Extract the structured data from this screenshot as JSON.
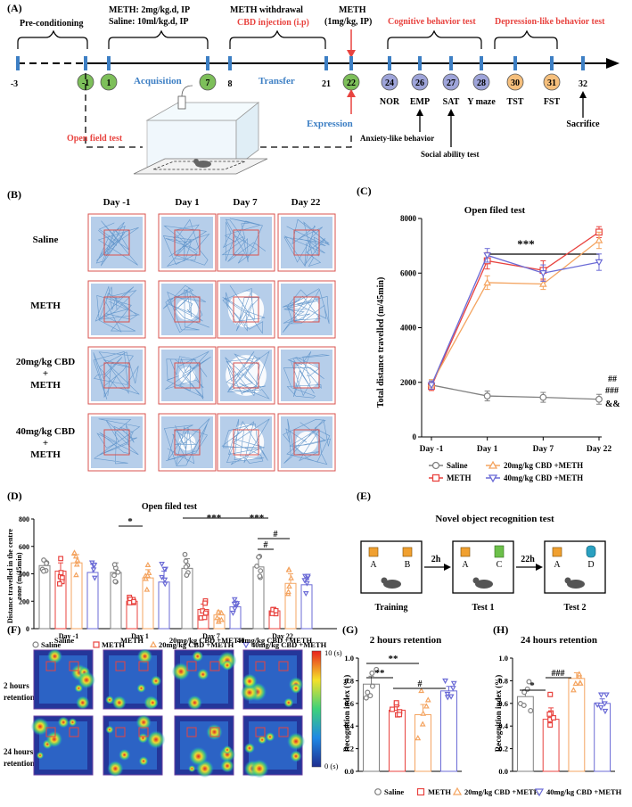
{
  "colors": {
    "red": "#e8433f",
    "blue": "#3d7fc4",
    "green": "#7dbf5a",
    "purple": "#9ea4d9",
    "orange": "#f5bf7c",
    "track": "#a9c6e6",
    "box": "#d9534f",
    "saline": "#808080",
    "meth": "#e8433f",
    "cbd20": "#f4a460",
    "cbd40": "#6b6bd6"
  },
  "panelA": {
    "label": "(A)",
    "preconditioning": "Pre-conditioning",
    "meth_dose": "METH: 2mg/kg.d, IP",
    "saline_dose": "Saline: 10ml/kg.d, IP",
    "acquisition": "Acquisition",
    "withdrawal": "METH withdrawal",
    "cbd_inj": "CBD injection (i.p)",
    "transfer": "Transfer",
    "meth_challenge_1": "METH",
    "meth_challenge_2": "(1mg/kg, IP)",
    "expression": "Expression",
    "cognitive": "Cognitive behavior test",
    "depression": "Depression-like behavior test",
    "open_field": "Open field test",
    "anxiety": "Anxiety-like behavior",
    "social": "Social ability test",
    "sacrifice": "Sacrifice",
    "days_plain": [
      "-3",
      "8",
      "21",
      "32"
    ],
    "days_circle": [
      "-1",
      "1",
      "7",
      "22",
      "24",
      "26",
      "27",
      "28",
      "30",
      "31"
    ],
    "tests": [
      "NOR",
      "EMP",
      "SAT",
      "Y maze",
      "TST",
      "FST"
    ]
  },
  "panelB": {
    "label": "(B)",
    "cols": [
      "Day -1",
      "Day 1",
      "Day 7",
      "Day 22"
    ],
    "rows": [
      "Saline",
      "METH",
      "20mg/kg CBD",
      "+",
      "METH",
      "40mg/kg CBD",
      "+",
      "METH"
    ]
  },
  "panelC": {
    "label": "(C)",
    "title": "Open filed test",
    "ylabel": "Total distance travelled (m/45min)",
    "sig_top": "***",
    "sig_right": [
      "##",
      "###",
      "&&"
    ],
    "legend": [
      "Saline",
      "METH",
      "20mg/kg CBD +METH",
      "40mg/kg CBD +METH"
    ]
  },
  "panelD": {
    "label": "(D)",
    "title": "Open filed test",
    "ylabel_1": "Distance travelled in the centre",
    "ylabel_2": "zone  (m/45min)",
    "sig": [
      "*",
      "***",
      "***",
      "#",
      "#"
    ]
  },
  "panelE": {
    "label": "(E)",
    "title": "Novel object recognition test",
    "stages": [
      "Training",
      "Test 1",
      "Test 2"
    ],
    "objects": [
      "A",
      "B",
      "A",
      "C",
      "A",
      "D"
    ],
    "intervals": [
      "2h",
      "22h"
    ]
  },
  "panelF": {
    "label": "(F)",
    "cols": [
      "Saline",
      "METH",
      "20mg/kg CBD +METH",
      "40mg/kg CBD +METH"
    ],
    "rows": [
      "2 hours",
      "retention",
      "24 hours",
      "retention"
    ],
    "scale_max": "10 (s)",
    "scale_min": "0 (s)"
  },
  "panelG": {
    "label": "(G)",
    "title": "2 hours retention",
    "ylabel": "Recognition index (%)",
    "sig": [
      "**",
      "**",
      "#"
    ]
  },
  "panelH": {
    "label": "(H)",
    "title": "24 hours retention",
    "ylabel": "Recognition index (%)",
    "sig": [
      "*",
      "###"
    ]
  },
  "legend_bottom": [
    "Saline",
    "METH",
    "20mg/kg CBD +METH",
    "40mg/kg CBD +METH"
  ],
  "chart_data": [
    {
      "type": "line",
      "title": "Open filed test",
      "ylabel": "Total distance travelled (m/45min)",
      "categories": [
        "Day -1",
        "Day 1",
        "Day 7",
        "Day 22"
      ],
      "ylim": [
        0,
        8000
      ],
      "yticks": [
        0,
        2000,
        4000,
        6000,
        8000
      ],
      "series": [
        {
          "name": "Saline",
          "values": [
            1900,
            1500,
            1450,
            1380
          ],
          "err": [
            150,
            180,
            180,
            180
          ]
        },
        {
          "name": "METH",
          "values": [
            1850,
            6450,
            6100,
            7500
          ],
          "err": [
            150,
            300,
            350,
            200
          ]
        },
        {
          "name": "20mg/kg CBD +METH",
          "values": [
            1950,
            5650,
            5600,
            7200
          ],
          "err": [
            150,
            250,
            200,
            300
          ]
        },
        {
          "name": "40mg/kg CBD +METH",
          "values": [
            1900,
            6650,
            6000,
            6400
          ],
          "err": [
            150,
            250,
            300,
            300
          ]
        }
      ]
    },
    {
      "type": "bar",
      "title": "Open filed test",
      "categories": [
        "Day -1",
        "Day 1",
        "Day 7",
        "Day 22"
      ],
      "ylim": [
        0,
        800
      ],
      "yticks": [
        0,
        200,
        400,
        600,
        800
      ],
      "series": [
        {
          "name": "Saline",
          "values": [
            460,
            410,
            440,
            450
          ],
          "err": [
            40,
            70,
            70,
            70
          ]
        },
        {
          "name": "METH",
          "values": [
            420,
            200,
            140,
            130
          ],
          "err": [
            60,
            20,
            40,
            15
          ]
        },
        {
          "name": "20mg/kg CBD +METH",
          "values": [
            480,
            370,
            100,
            330
          ],
          "err": [
            60,
            60,
            30,
            70
          ]
        },
        {
          "name": "40mg/kg CBD +METH",
          "values": [
            410,
            340,
            160,
            320
          ],
          "err": [
            60,
            80,
            40,
            40
          ]
        }
      ]
    },
    {
      "type": "bar",
      "title": "2 hours retention",
      "ylabel": "Recognition index (%)",
      "ylim": [
        0,
        1.0
      ],
      "yticks": [
        0.0,
        0.2,
        0.4,
        0.6,
        0.8,
        1.0
      ],
      "categories": [
        "Saline",
        "METH",
        "20mg/kg CBD +METH",
        "40mg/kg CBD +METH"
      ],
      "values": [
        0.77,
        0.54,
        0.5,
        0.71
      ],
      "err": [
        0.07,
        0.04,
        0.09,
        0.04
      ]
    },
    {
      "type": "bar",
      "title": "24 hours retention",
      "ylabel": "Recognition index (%)",
      "ylim": [
        0,
        1.0
      ],
      "yticks": [
        0.0,
        0.2,
        0.4,
        0.6,
        0.8,
        1.0
      ],
      "categories": [
        "Saline",
        "METH",
        "20mg/kg CBD +METH",
        "40mg/kg CBD +METH"
      ],
      "values": [
        0.66,
        0.46,
        0.82,
        0.6
      ],
      "err": [
        0.06,
        0.1,
        0.05,
        0.04
      ]
    }
  ]
}
